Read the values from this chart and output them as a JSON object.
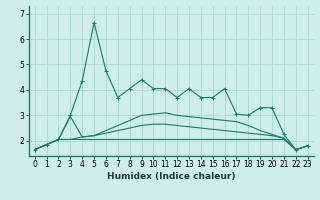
{
  "x": [
    0,
    1,
    2,
    3,
    4,
    5,
    6,
    7,
    8,
    9,
    10,
    11,
    12,
    13,
    14,
    15,
    16,
    17,
    18,
    19,
    20,
    21,
    22,
    23
  ],
  "line1_y": [
    1.65,
    1.85,
    2.05,
    3.0,
    4.35,
    6.65,
    4.75,
    3.7,
    4.05,
    4.4,
    4.05,
    4.05,
    3.7,
    4.05,
    3.7,
    3.7,
    4.05,
    3.05,
    3.0,
    3.3,
    3.3,
    2.25,
    1.65,
    1.8
  ],
  "line2_y": [
    1.65,
    1.85,
    2.05,
    2.05,
    2.05,
    2.05,
    2.05,
    2.05,
    2.05,
    2.05,
    2.05,
    2.05,
    2.05,
    2.05,
    2.05,
    2.05,
    2.05,
    2.05,
    2.05,
    2.05,
    2.05,
    2.05,
    1.65,
    1.8
  ],
  "line3_y": [
    1.65,
    1.85,
    2.05,
    2.05,
    2.15,
    2.2,
    2.3,
    2.4,
    2.5,
    2.6,
    2.65,
    2.65,
    2.6,
    2.55,
    2.5,
    2.45,
    2.4,
    2.35,
    2.3,
    2.25,
    2.2,
    2.1,
    1.65,
    1.8
  ],
  "line4_y": [
    1.65,
    1.85,
    2.05,
    2.95,
    2.15,
    2.2,
    2.4,
    2.6,
    2.8,
    3.0,
    3.05,
    3.1,
    3.0,
    2.95,
    2.9,
    2.85,
    2.8,
    2.75,
    2.6,
    2.4,
    2.25,
    2.1,
    1.65,
    1.8
  ],
  "bg_color": "#ceeeed",
  "grid_color": "#a8d8d4",
  "line_color": "#1a7a6e",
  "xlabel": "Humidex (Indice chaleur)",
  "ylim": [
    1.4,
    7.3
  ],
  "xlim": [
    -0.5,
    23.5
  ],
  "yticks": [
    2,
    3,
    4,
    5,
    6,
    7
  ],
  "xticks": [
    0,
    1,
    2,
    3,
    4,
    5,
    6,
    7,
    8,
    9,
    10,
    11,
    12,
    13,
    14,
    15,
    16,
    17,
    18,
    19,
    20,
    21,
    22,
    23
  ],
  "tick_fontsize": 5.5,
  "xlabel_fontsize": 6.5
}
